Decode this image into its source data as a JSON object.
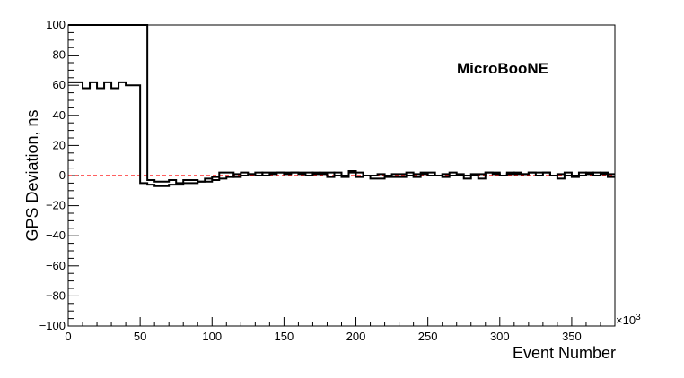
{
  "chart_data": {
    "type": "line",
    "ylabel": "GPS Deviation, ns",
    "xlabel": "Event Number",
    "x_multiplier_label": "×10",
    "x_multiplier_exp": "3",
    "annotation": "MicroBooNE",
    "xlim": [
      0,
      380
    ],
    "ylim": [
      -100,
      100
    ],
    "x_ticks": [
      0,
      50,
      100,
      150,
      200,
      250,
      300,
      350
    ],
    "y_ticks": [
      -100,
      -80,
      -60,
      -40,
      -20,
      0,
      20,
      40,
      60,
      80,
      100
    ],
    "x_minor_step": 10,
    "y_minor_step": 5,
    "reference_line": {
      "y": 0,
      "color": "#ff0000",
      "style": "dashed"
    },
    "grid": false,
    "series": [
      {
        "step": "post",
        "x": [
          0,
          5,
          10,
          15,
          20,
          25,
          30,
          35,
          40,
          45,
          50,
          55,
          60,
          65,
          70,
          75,
          80,
          85,
          90,
          95,
          100,
          105,
          110,
          115,
          120,
          125,
          130,
          135,
          140,
          145,
          150,
          155,
          160,
          165,
          170,
          175,
          180,
          185,
          190,
          195,
          200,
          205,
          210,
          215,
          220,
          225,
          230,
          235,
          240,
          245,
          250,
          255,
          260,
          265,
          270,
          275,
          280,
          285,
          290,
          295,
          300,
          305,
          310,
          315,
          320,
          325,
          330,
          335,
          340,
          345,
          350,
          355,
          360,
          365,
          370,
          375,
          380
        ],
        "y": [
          62,
          62,
          58,
          62,
          58,
          62,
          58,
          62,
          60,
          60,
          -5,
          -6,
          -7,
          -7,
          -6,
          -6,
          -5,
          -5,
          -4,
          -4,
          -3,
          -2,
          -1,
          1,
          2,
          1,
          0,
          2,
          2,
          2,
          1,
          2,
          1,
          0,
          2,
          1,
          -1,
          2,
          0,
          2,
          -1,
          0,
          -2,
          -2,
          -1,
          -1,
          -1,
          0,
          -1,
          1,
          0,
          0,
          -1,
          0,
          0,
          -2,
          0,
          -2,
          2,
          1,
          0,
          2,
          1,
          1,
          2,
          2,
          2,
          0,
          -2,
          0,
          -1,
          2,
          1,
          2,
          1,
          -1,
          -1
        ]
      },
      {
        "step": "post",
        "x": [
          0,
          5,
          10,
          15,
          20,
          25,
          30,
          35,
          40,
          45,
          50,
          55,
          60,
          65,
          70,
          75,
          80,
          85,
          90,
          95,
          100,
          105,
          110,
          115,
          120,
          125,
          130,
          135,
          140,
          145,
          150,
          155,
          160,
          165,
          170,
          175,
          180,
          185,
          190,
          195,
          200,
          205,
          210,
          215,
          220,
          225,
          230,
          235,
          240,
          245,
          250,
          255,
          260,
          265,
          270,
          275,
          280,
          285,
          290,
          295,
          300,
          305,
          310,
          315,
          320,
          325,
          330,
          335,
          340,
          345,
          350,
          355,
          360,
          365,
          370,
          375,
          380
        ],
        "y": [
          100,
          100,
          100,
          100,
          100,
          100,
          100,
          100,
          100,
          100,
          100,
          -3,
          -4,
          -4,
          -3,
          -5,
          -3,
          -3,
          -4,
          -2,
          -1,
          2,
          2,
          -1,
          0,
          1,
          2,
          0,
          1,
          2,
          2,
          2,
          2,
          2,
          1,
          2,
          2,
          0,
          -1,
          3,
          2,
          0,
          0,
          1,
          0,
          1,
          1,
          2,
          1,
          2,
          2,
          0,
          1,
          2,
          1,
          0,
          1,
          1,
          2,
          2,
          0,
          1,
          2,
          1,
          2,
          0,
          2,
          0,
          1,
          2,
          0,
          0,
          2,
          0,
          2,
          1,
          1
        ]
      }
    ]
  }
}
